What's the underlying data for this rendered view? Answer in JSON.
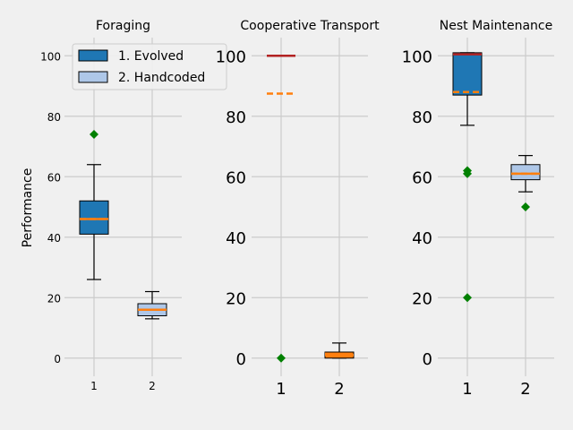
{
  "colors": {
    "background": "#f0f0f0",
    "grid": "#cbcbcb",
    "evolved": "#1f77b4",
    "handcoded": "#aec7e8",
    "median": "#ff7f0e",
    "mean": "#ff7f0e",
    "outlier": "#008000",
    "extra_line": "#b22222"
  },
  "legend": {
    "items": [
      {
        "label": "1. Evolved",
        "color": "#1f77b4"
      },
      {
        "label": "2. Handcoded",
        "color": "#aec7e8"
      }
    ],
    "placement": "top-center of first panel"
  },
  "chart_data": [
    {
      "type": "boxplot",
      "title": "Foraging",
      "ylabel": "Performance",
      "ylim": [
        -6,
        106
      ],
      "yticks": [
        0,
        20,
        40,
        60,
        80,
        100
      ],
      "categories": [
        "1",
        "2"
      ],
      "grid": true,
      "boxes": [
        {
          "name": "1. Evolved",
          "whisker_low": 26,
          "q1": 41,
          "median": 46,
          "mean": 46,
          "q3": 52,
          "whisker_high": 64,
          "outliers": [
            74
          ]
        },
        {
          "name": "2. Handcoded",
          "whisker_low": 13,
          "q1": 14,
          "median": 16,
          "mean": 16,
          "q3": 18,
          "whisker_high": 22,
          "outliers": []
        }
      ]
    },
    {
      "type": "boxplot",
      "title": "Cooperative Transport",
      "ylim": [
        -6,
        106
      ],
      "yticks": [
        0,
        20,
        40,
        60,
        80,
        100
      ],
      "categories": [
        "1",
        "2"
      ],
      "grid": true,
      "boxes": [
        {
          "name": "1. Evolved",
          "whisker_low": 100,
          "q1": 100,
          "median": 100,
          "mean": 87.5,
          "q3": 100,
          "whisker_high": 100,
          "outliers": [
            0
          ]
        },
        {
          "name": "2. Handcoded",
          "whisker_low": 0,
          "q1": 0,
          "median": 1,
          "mean": 1.5,
          "q3": 2,
          "whisker_high": 5,
          "outliers": []
        }
      ]
    },
    {
      "type": "boxplot",
      "title": "Nest Maintenance",
      "ylim": [
        -6,
        106
      ],
      "yticks": [
        0,
        20,
        40,
        60,
        80,
        100
      ],
      "categories": [
        "1",
        "2"
      ],
      "grid": true,
      "boxes": [
        {
          "name": "1. Evolved",
          "whisker_low": 77,
          "q1": 87,
          "median": 100.5,
          "mean": 88,
          "q3": 101,
          "whisker_high": 101,
          "outliers": [
            62,
            61,
            20
          ]
        },
        {
          "name": "2. Handcoded",
          "whisker_low": 55,
          "q1": 59,
          "median": 61,
          "mean": 61,
          "q3": 64,
          "whisker_high": 67,
          "outliers": [
            50
          ]
        }
      ]
    }
  ]
}
